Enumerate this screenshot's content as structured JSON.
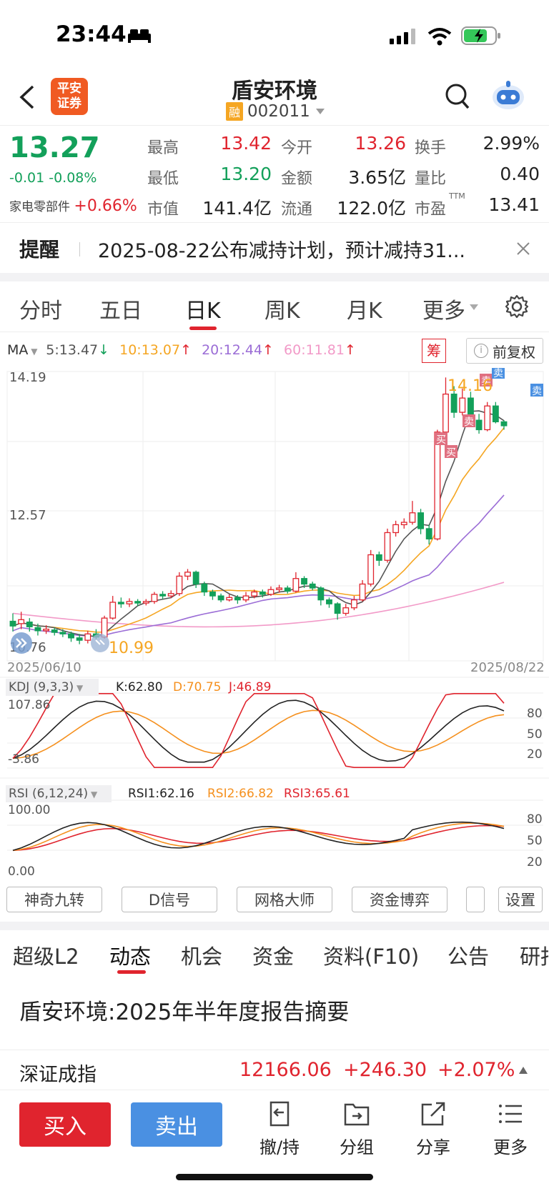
{
  "status_bar": {
    "time": "23:44"
  },
  "header": {
    "logo_line1": "平安",
    "logo_line2": "证券",
    "stock_name": "盾安环境",
    "badge": "融",
    "stock_code": "002011"
  },
  "quote": {
    "price": "13.27",
    "change": "-0.01",
    "change_pct": "-0.08%",
    "sector_label": "家电零部件",
    "sector_change": "+0.66%",
    "rows": [
      [
        {
          "label": "最高",
          "value": "13.42"
        },
        {
          "label": "今开",
          "value": "13.26"
        },
        {
          "label": "换手",
          "value": "2.99%"
        }
      ],
      [
        {
          "label": "最低",
          "value": "13.20"
        },
        {
          "label": "金额",
          "value": "3.65亿"
        },
        {
          "label": "量比",
          "value": "0.40"
        }
      ],
      [
        {
          "label": "市值",
          "value": "141.4亿"
        },
        {
          "label": "流通",
          "value": "122.0亿"
        },
        {
          "label": "市盈",
          "value": "13.41",
          "sup": "TTM"
        }
      ]
    ]
  },
  "reminder": {
    "label": "提醒",
    "text": "2025-08-22公布减持计划，预计减持31..."
  },
  "period_tabs": [
    "分时",
    "五日",
    "日K",
    "周K",
    "月K",
    "更多"
  ],
  "active_period": 2,
  "ma": {
    "label": "MA",
    "ma5": "5:13.47",
    "ma10": "10:13.07",
    "ma20": "20:12.44",
    "ma60": "60:11.81",
    "chip_label": "筹",
    "adjust_label": "前复权"
  },
  "colors": {
    "up": "#e0242e",
    "down": "#13a05a",
    "ma5": "#555555",
    "ma10": "#f5a623",
    "ma20": "#9b6dd6",
    "ma60": "#f29ac8",
    "kdj_d": "#f5901e",
    "rsi2": "#f5901e",
    "accent": "#e0242e",
    "sell_blue": "#4a90e2"
  },
  "kchart": {
    "y_max_label": "14.19",
    "y_mid_label": "12.57",
    "y_min_label": "10.76",
    "high_marker": "14.16",
    "low_marker": "10.99",
    "date_start": "2025/06/10",
    "date_end": "2025/08/22",
    "buy_label": "买",
    "sell_label": "卖"
  },
  "kdj": {
    "title": "KDJ (9,3,3)",
    "k": "K:62.80",
    "d": "D:70.75",
    "j": "J:46.89",
    "y_top": "107.86",
    "y_bottom": "-3.86",
    "levels": [
      "80",
      "50",
      "20"
    ]
  },
  "rsi": {
    "title": "RSI (6,12,24)",
    "rsi1": "RSI1:62.16",
    "rsi2": "RSI2:66.82",
    "rsi3": "RSI3:65.61",
    "y_top": "100.00",
    "y_bottom": "0.00",
    "levels": [
      "80",
      "50",
      "20"
    ]
  },
  "tools": [
    "神奇九转",
    "D信号",
    "网格大师",
    "资金博弈",
    "设置"
  ],
  "news_tabs": [
    "超级L2",
    "动态",
    "机会",
    "资金",
    "资料(F10)",
    "公告",
    "研报"
  ],
  "active_news_tab": 1,
  "news_headline": "盾安环境:2025年半年度报告摘要",
  "index_bar": {
    "name": "深证成指",
    "value": "12166.06",
    "change": "+246.30",
    "pct": "+2.07%"
  },
  "actions": {
    "buy": "买入",
    "sell": "卖出",
    "icons": [
      {
        "icon": "withdraw-icon",
        "label": "撤/持"
      },
      {
        "icon": "group-icon",
        "label": "分组"
      },
      {
        "icon": "share-icon",
        "label": "分享"
      },
      {
        "icon": "menu-icon",
        "label": "更多"
      }
    ]
  }
}
